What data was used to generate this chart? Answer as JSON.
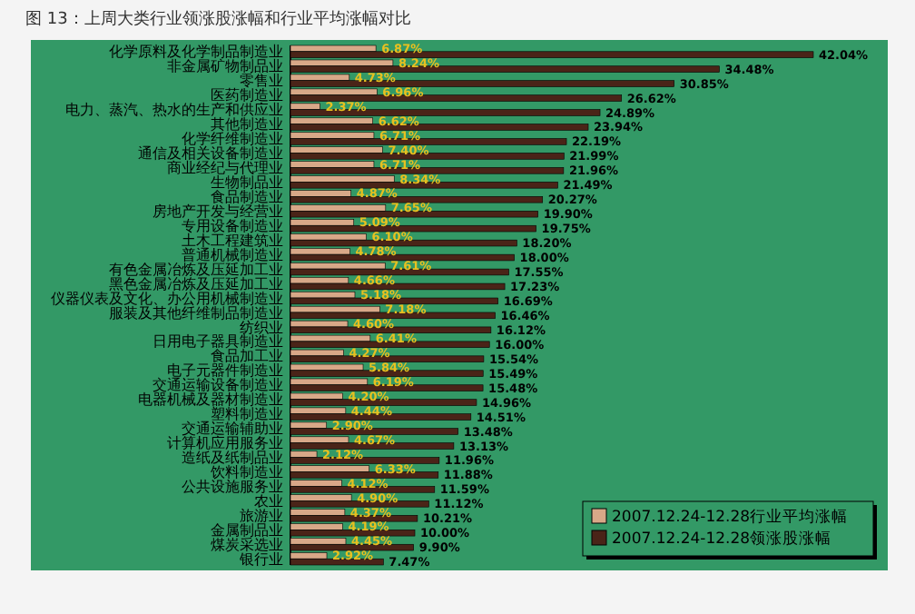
{
  "chart_data": {
    "type": "bar",
    "orientation": "horizontal",
    "title": "图 13：上周大类行业领涨股涨幅和行业平均涨幅对比",
    "categories": [
      "化学原料及化学制品制造业",
      "非金属矿物制品业",
      "零售业",
      "医药制造业",
      "电力、蒸汽、热水的生产和供应业",
      "其他制造业",
      "化学纤维制造业",
      "通信及相关设备制造业",
      "商业经纪与代理业",
      "生物制品业",
      "食品制造业",
      "房地产开发与经营业",
      "专用设备制造业",
      "土木工程建筑业",
      "普通机械制造业",
      "有色金属冶炼及压延加工业",
      "黑色金属冶炼及压延加工业",
      "仪器仪表及文化、办公用机械制造业",
      "服装及其他纤维制品制造业",
      "纺织业",
      "日用电子器具制造业",
      "食品加工业",
      "电子元器件制造业",
      "交通运输设备制造业",
      "电器机械及器材制造业",
      "塑料制造业",
      "交通运输辅助业",
      "计算机应用服务业",
      "造纸及纸制品业",
      "饮料制造业",
      "公共设施服务业",
      "农业",
      "旅游业",
      "金属制品业",
      "煤炭采选业",
      "银行业"
    ],
    "series": [
      {
        "name": "2007.12.24-12.28行业平均涨幅",
        "color": "#d8a888",
        "values": [
          6.87,
          8.24,
          4.73,
          6.96,
          2.37,
          6.62,
          6.71,
          7.4,
          6.71,
          8.34,
          4.87,
          7.65,
          5.09,
          6.1,
          4.78,
          7.61,
          4.66,
          5.18,
          7.18,
          4.6,
          6.41,
          4.27,
          5.84,
          6.19,
          4.2,
          4.44,
          2.9,
          4.67,
          2.12,
          6.33,
          4.12,
          4.9,
          4.37,
          4.19,
          4.45,
          2.92
        ],
        "value_labels": [
          "6.87%",
          "8.24%",
          "4.73%",
          "6.96%",
          "2.37%",
          "6.62%",
          "6.71%",
          "7.40%",
          "6.71%",
          "8.34%",
          "4.87%",
          "7.65%",
          "5.09%",
          "6.10%",
          "4.78%",
          "7.61%",
          "4.66%",
          "5.18%",
          "7.18%",
          "4.60%",
          "6.41%",
          "4.27%",
          "5.84%",
          "6.19%",
          "4.20%",
          "4.44%",
          "2.90%",
          "4.67%",
          "2.12%",
          "6.33%",
          "4.12%",
          "4.90%",
          "4.37%",
          "4.19%",
          "4.45%",
          "2.92%"
        ]
      },
      {
        "name": "2007.12.24-12.28领涨股涨幅",
        "color": "#4a2418",
        "values": [
          42.04,
          34.48,
          30.85,
          26.62,
          24.89,
          23.94,
          22.19,
          21.99,
          21.96,
          21.49,
          20.27,
          19.9,
          19.75,
          18.2,
          18.0,
          17.55,
          17.23,
          16.69,
          16.46,
          16.12,
          16.0,
          15.54,
          15.49,
          15.48,
          14.96,
          14.51,
          13.48,
          13.13,
          11.96,
          11.88,
          11.59,
          11.12,
          10.21,
          10.0,
          9.9,
          7.47
        ],
        "value_labels": [
          "42.04%",
          "34.48%",
          "30.85%",
          "26.62%",
          "24.89%",
          "23.94%",
          "22.19%",
          "21.99%",
          "21.96%",
          "21.49%",
          "20.27%",
          "19.90%",
          "19.75%",
          "18.20%",
          "18.00%",
          "17.55%",
          "17.23%",
          "16.69%",
          "16.46%",
          "16.12%",
          "16.00%",
          "15.54%",
          "15.49%",
          "15.48%",
          "14.96%",
          "14.51%",
          "13.48%",
          "13.13%",
          "11.96%",
          "11.88%",
          "11.59%",
          "11.12%",
          "10.21%",
          "10.00%",
          "9.90%",
          "7.47%"
        ]
      }
    ],
    "legend": "bottom right"
  }
}
